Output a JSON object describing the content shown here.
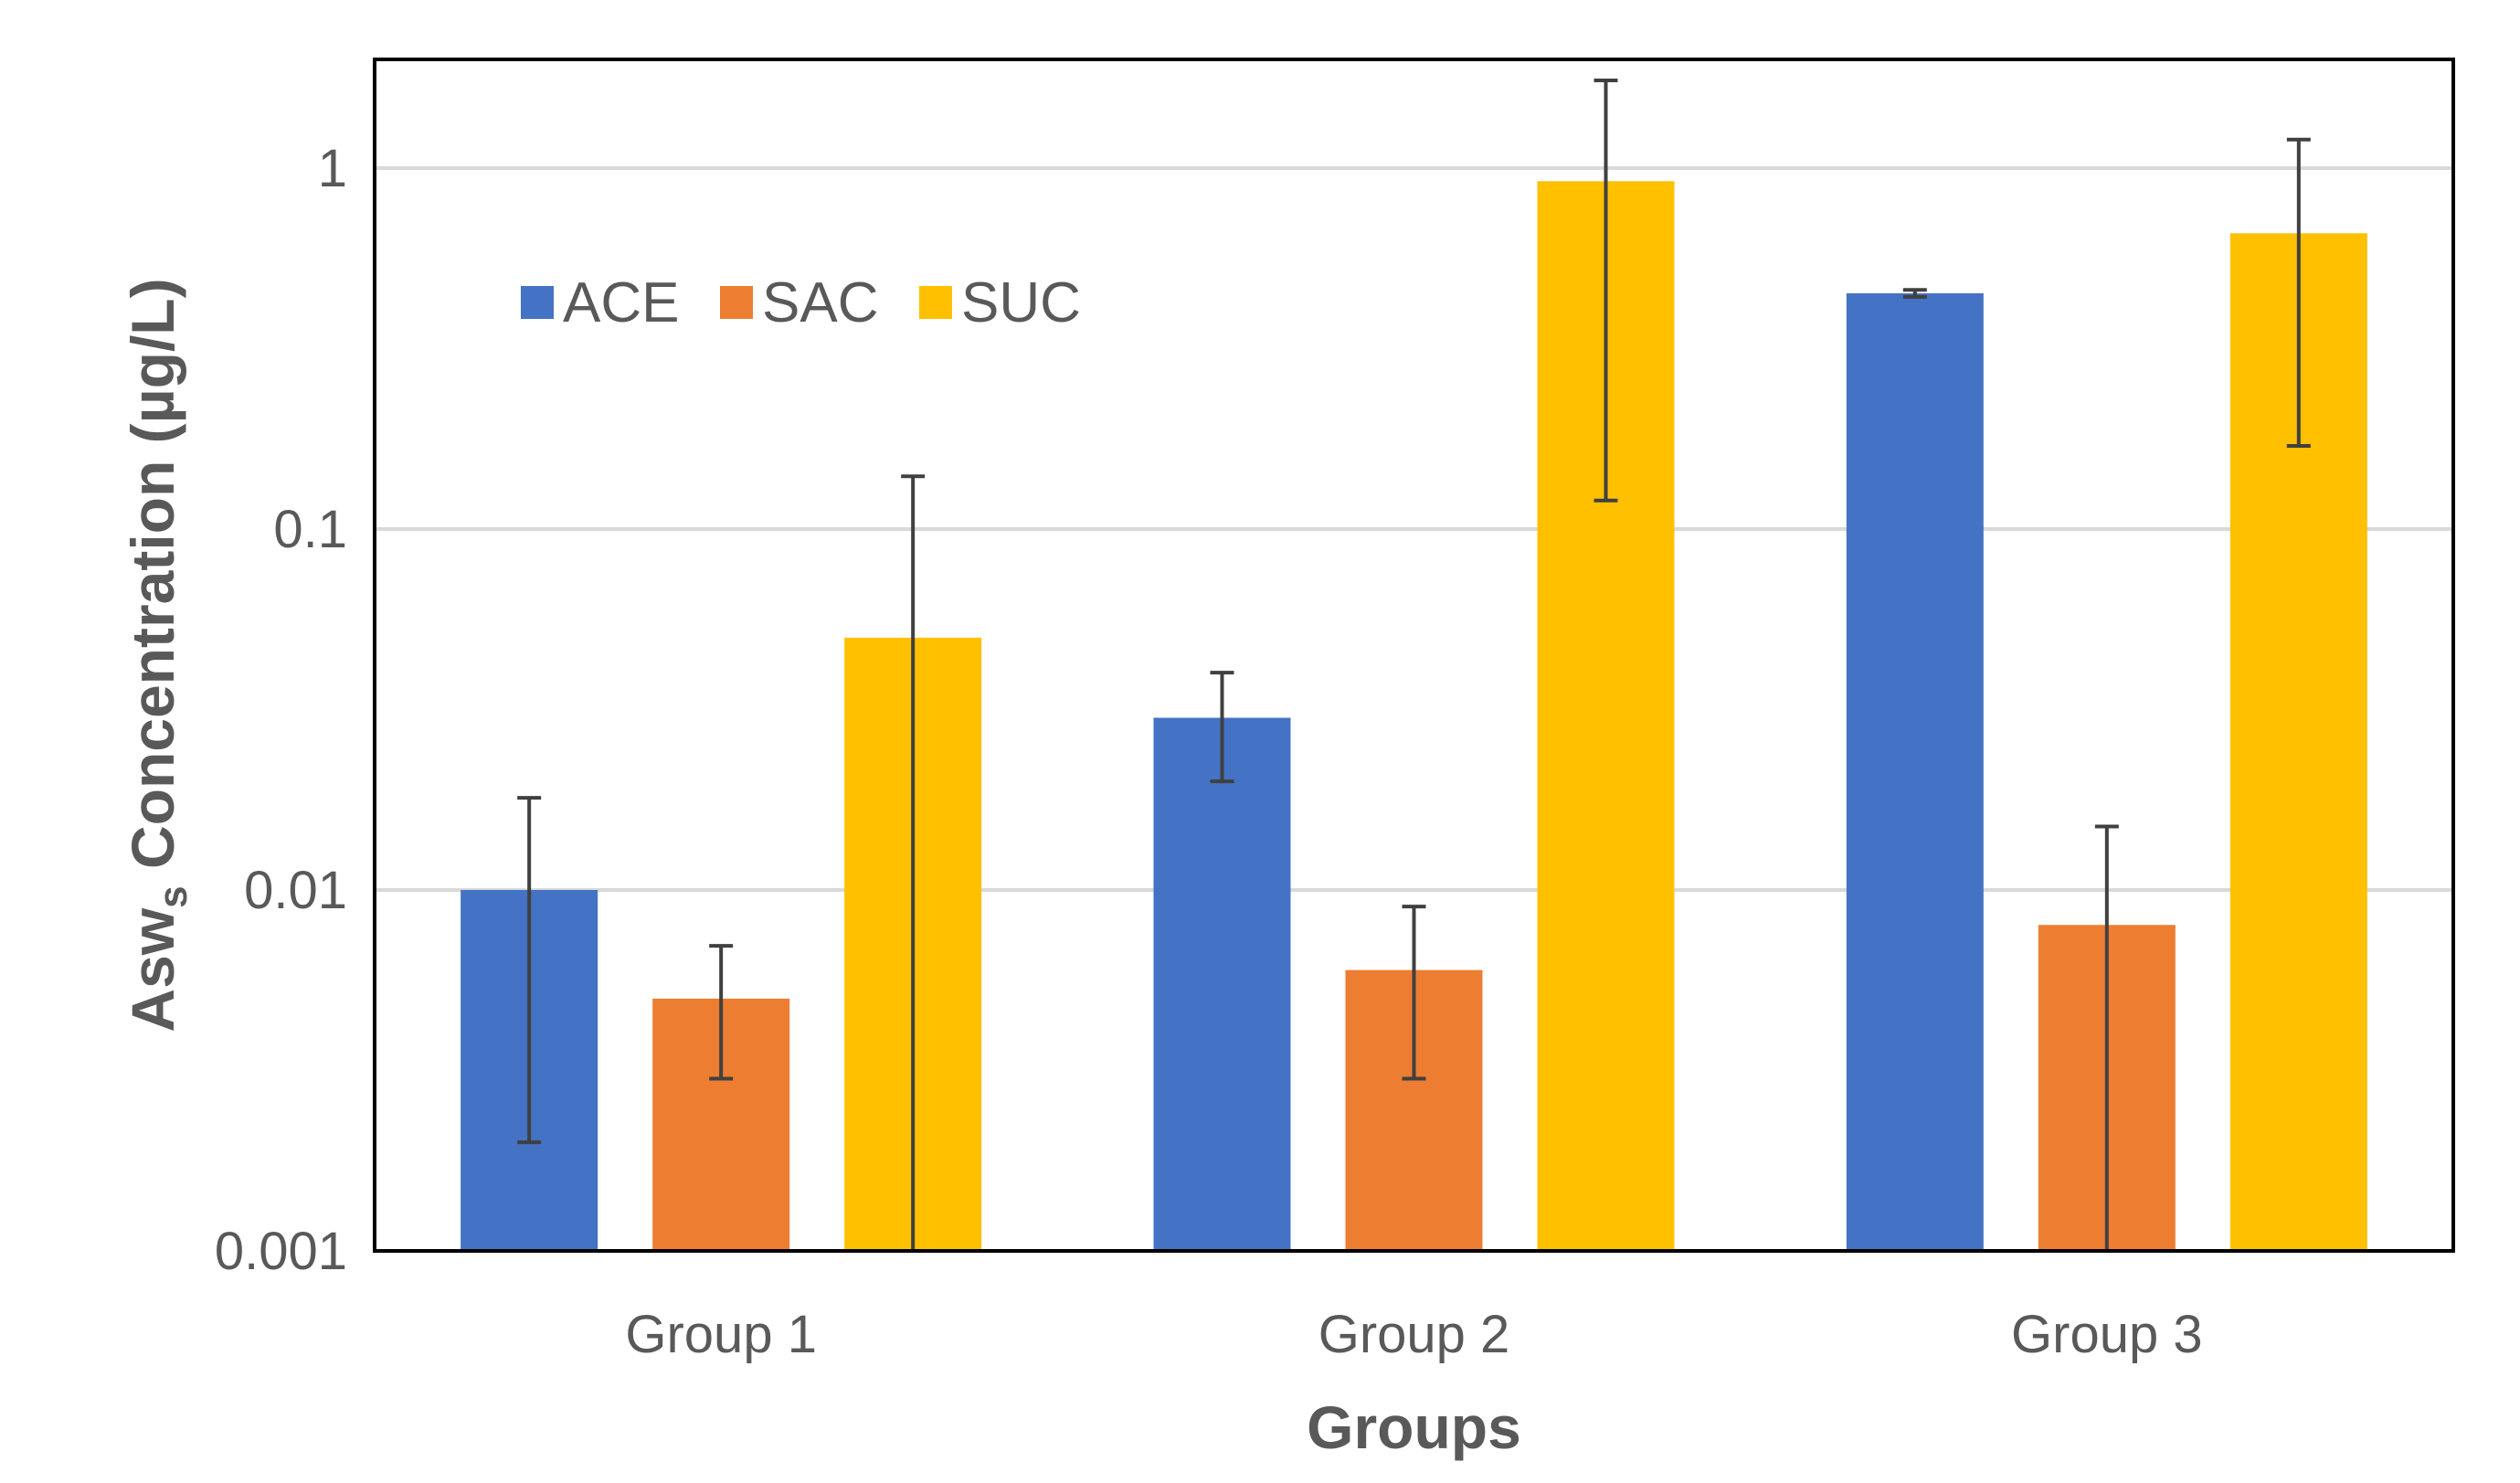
{
  "chart_data": {
    "type": "bar",
    "categories": [
      "Group 1",
      "Group 2",
      "Group 3"
    ],
    "xlabel": "Groups",
    "ylabel": {
      "prefix": "Asw",
      "subscript": "s",
      "suffix": " Concentration (µg/L)"
    },
    "yscale": "log",
    "ylim": [
      0.001,
      2
    ],
    "yticks": [
      0.001,
      0.01,
      0.1,
      1
    ],
    "ytick_labels": [
      "0.001",
      "0.01",
      "0.1",
      "1"
    ],
    "grid": true,
    "legend_position": "top-left",
    "series": [
      {
        "name": "ACE",
        "color": "#4472C4",
        "values": [
          0.01,
          0.03,
          0.45
        ],
        "error_low": [
          0.002,
          0.02,
          0.44
        ],
        "error_high": [
          0.018,
          0.04,
          0.46
        ]
      },
      {
        "name": "SAC",
        "color": "#ED7D31",
        "values": [
          0.005,
          0.006,
          0.008
        ],
        "error_low": [
          0.003,
          0.003,
          0.001
        ],
        "error_high": [
          0.007,
          0.009,
          0.015
        ]
      },
      {
        "name": "SUC",
        "color": "#FFC000",
        "values": [
          0.05,
          0.92,
          0.66
        ],
        "error_low": [
          0.001,
          0.12,
          0.17
        ],
        "error_high": [
          0.14,
          1.75,
          1.2
        ]
      }
    ],
    "error_bar_color": "#404040",
    "gridline_color": "#D9D9D9",
    "frame_color": "#000000"
  }
}
